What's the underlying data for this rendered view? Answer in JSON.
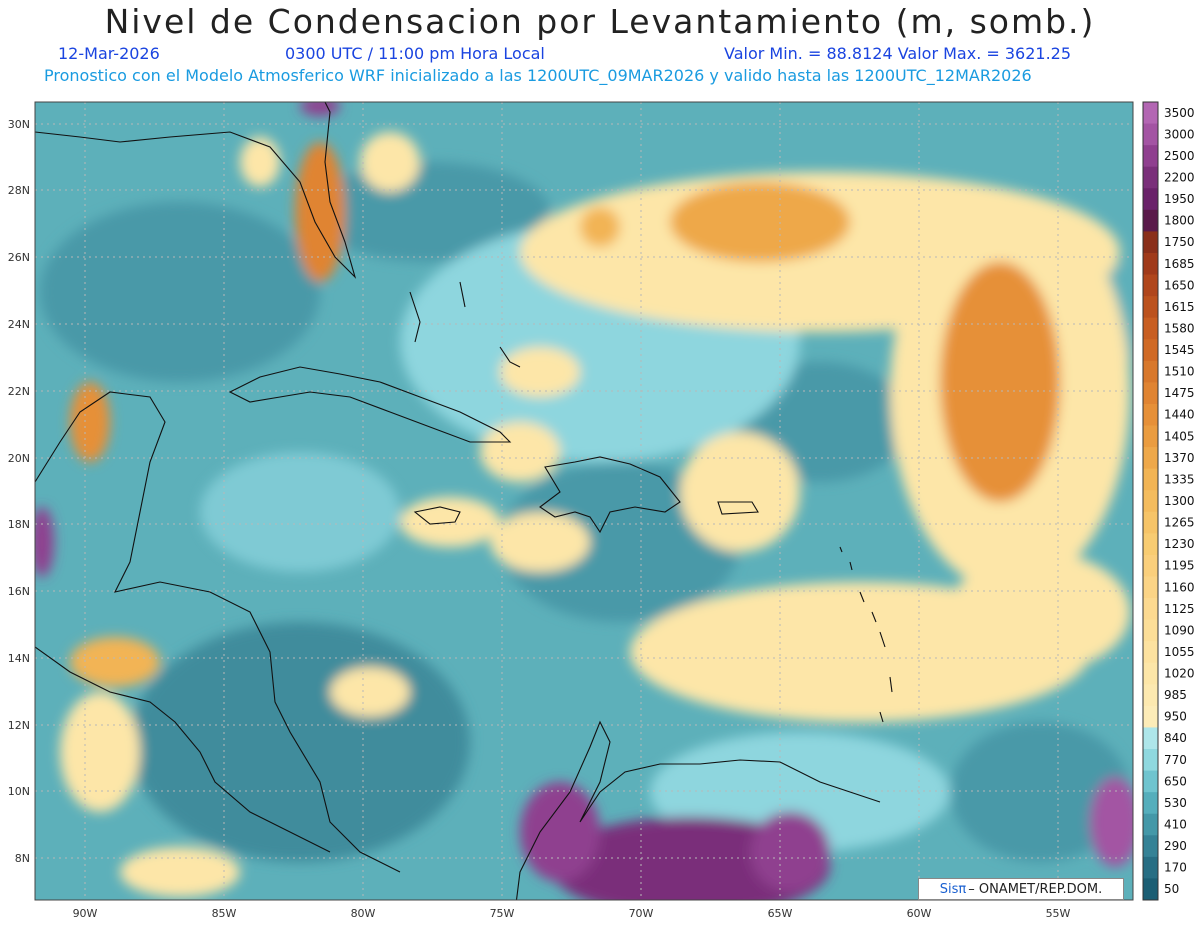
{
  "title": "Nivel de Condensacion por Levantamiento (m, somb.)",
  "date": "12-Mar-2026",
  "time": "0300 UTC / 11:00 pm Hora Local",
  "min_max": "Valor Min. = 88.8124   Valor Max. = 3621.25",
  "model_line": "Pronostico con el Modelo Atmosferico WRF inicializado a las 1200UTC_09MAR2026 y valido hasta las   1200UTC_12MAR2026",
  "lat_labels": [
    "30N",
    "28N",
    "26N",
    "24N",
    "22N",
    "20N",
    "18N",
    "16N",
    "14N",
    "12N",
    "10N",
    "8N"
  ],
  "lon_labels": [
    "90W",
    "85W",
    "80W",
    "75W",
    "70W",
    "65W",
    "60W",
    "55W"
  ],
  "colorbar": {
    "labels": [
      "3500",
      "3000",
      "2500",
      "2200",
      "1950",
      "1800",
      "1750",
      "1685",
      "1650",
      "1615",
      "1580",
      "1545",
      "1510",
      "1475",
      "1440",
      "1405",
      "1370",
      "1335",
      "1300",
      "1265",
      "1230",
      "1195",
      "1160",
      "1125",
      "1090",
      "1055",
      "1020",
      "985",
      "950",
      "840",
      "770",
      "650",
      "530",
      "410",
      "290",
      "170",
      "50"
    ],
    "colors": [
      "#b366b3",
      "#a354a3",
      "#8f3f8f",
      "#7a2f7a",
      "#6a226a",
      "#5a1a4a",
      "#8a2f1a",
      "#a03a1a",
      "#b0461c",
      "#bc521e",
      "#c85e22",
      "#d06a26",
      "#d8782c",
      "#e08432",
      "#e69038",
      "#ea9c40",
      "#eea84a",
      "#f2b454",
      "#f4bc5e",
      "#f6c468",
      "#f8cc72",
      "#facf7c",
      "#fbd486",
      "#fcd990",
      "#fcde98",
      "#fde2a0",
      "#fde6a8",
      "#fde9b0",
      "#fdecb8",
      "#aee6ea",
      "#8fd8df",
      "#6fc4cf",
      "#55aebc",
      "#4498a8",
      "#358296",
      "#276e84",
      "#1b5e74"
    ]
  },
  "logo_brand": "Sisπ",
  "logo_text": "– ONAMET/REP.DOM.",
  "colors": {
    "sea": "#4ea3b0",
    "coast": "#111111",
    "grid": "#b0b0b0"
  }
}
